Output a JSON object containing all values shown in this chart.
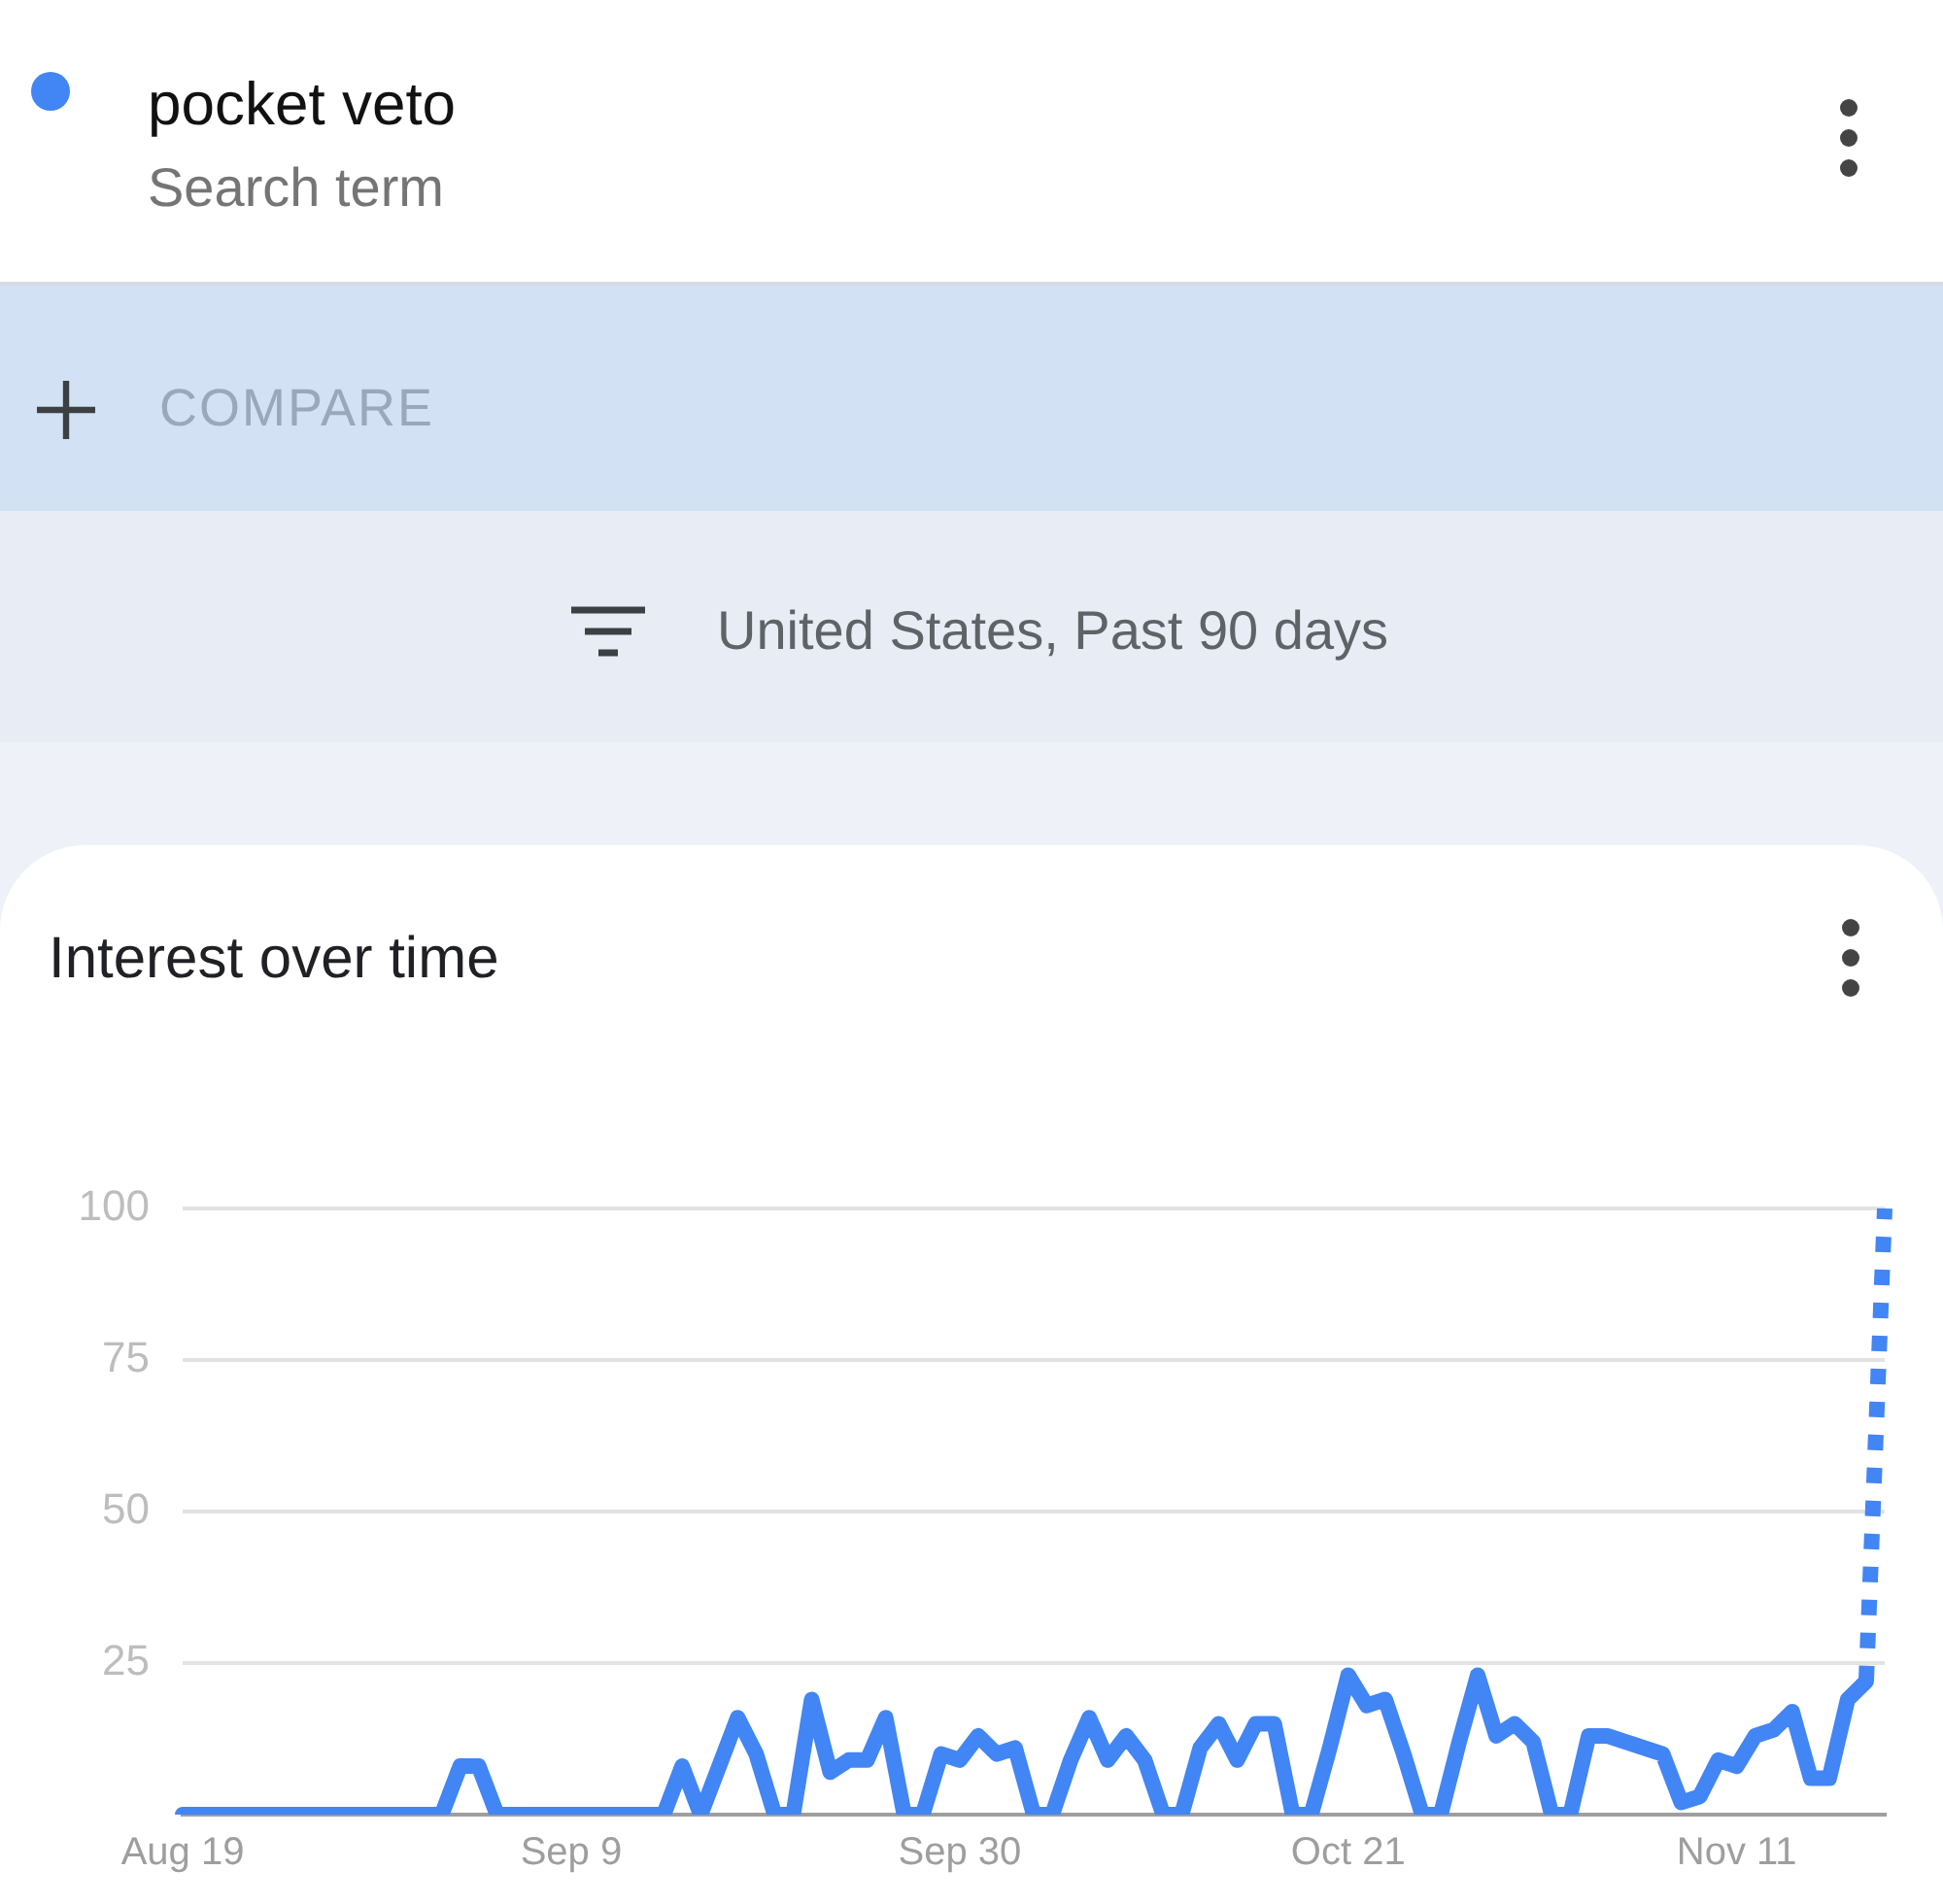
{
  "chart_data": {
    "type": "line",
    "title": "Interest over time",
    "subtitle": "United States, Past 90 days",
    "annotations": [
      "Search term",
      "COMPARE"
    ],
    "categories": [
      "Aug 19",
      null,
      null,
      null,
      null,
      null,
      null,
      null,
      null,
      null,
      null,
      null,
      null,
      null,
      null,
      null,
      null,
      null,
      null,
      null,
      null,
      "Sep 9",
      null,
      null,
      null,
      null,
      null,
      null,
      null,
      null,
      null,
      null,
      null,
      null,
      null,
      null,
      null,
      null,
      null,
      null,
      null,
      null,
      "Sep 30",
      null,
      null,
      null,
      null,
      null,
      null,
      null,
      null,
      null,
      null,
      null,
      null,
      null,
      null,
      null,
      null,
      null,
      null,
      null,
      null,
      "Oct 21",
      null,
      null,
      null,
      null,
      null,
      null,
      null,
      null,
      null,
      null,
      null,
      null,
      null,
      null,
      null,
      null,
      null,
      null,
      null,
      null,
      "Nov 11",
      null,
      null,
      null,
      null,
      null,
      null,
      null,
      null
    ],
    "series": [
      {
        "name": "pocket veto",
        "color": "#4285f4",
        "values": [
          0,
          0,
          0,
          0,
          0,
          0,
          0,
          0,
          0,
          0,
          0,
          0,
          0,
          0,
          0,
          8,
          8,
          0,
          0,
          0,
          0,
          0,
          0,
          0,
          0,
          0,
          0,
          8,
          0,
          8,
          16,
          10,
          0,
          0,
          19,
          7,
          9,
          9,
          16,
          0,
          0,
          10,
          9,
          13,
          10,
          11,
          0,
          0,
          9,
          16,
          9,
          13,
          9,
          0,
          0,
          11,
          15,
          9,
          15,
          15,
          0,
          0,
          11,
          23,
          18,
          19,
          10,
          0,
          0,
          12,
          23,
          13,
          15,
          12,
          0,
          0,
          13,
          13,
          12,
          11,
          10,
          2,
          3,
          9,
          8,
          13,
          14,
          17,
          6,
          6,
          19,
          22,
          null
        ]
      },
      {
        "color": "#4285f4",
        "line_style": "dotted",
        "values": [
          null,
          null,
          null,
          null,
          null,
          null,
          null,
          null,
          null,
          null,
          null,
          null,
          null,
          null,
          null,
          null,
          null,
          null,
          null,
          null,
          null,
          null,
          null,
          null,
          null,
          null,
          null,
          null,
          null,
          null,
          null,
          null,
          null,
          null,
          null,
          null,
          null,
          null,
          null,
          null,
          null,
          null,
          null,
          null,
          null,
          null,
          null,
          null,
          null,
          null,
          null,
          null,
          null,
          null,
          null,
          null,
          null,
          null,
          null,
          null,
          null,
          null,
          null,
          null,
          null,
          null,
          null,
          null,
          null,
          null,
          null,
          null,
          null,
          null,
          null,
          null,
          null,
          null,
          null,
          null,
          null,
          null,
          null,
          null,
          null,
          null,
          null,
          null,
          null,
          null,
          null,
          22,
          100
        ]
      }
    ],
    "ylim": [
      0,
      100
    ],
    "yticks": [
      25,
      50,
      75,
      100
    ],
    "grid": "y",
    "legend": "top left",
    "line_style": "solid",
    "marker": "none"
  }
}
